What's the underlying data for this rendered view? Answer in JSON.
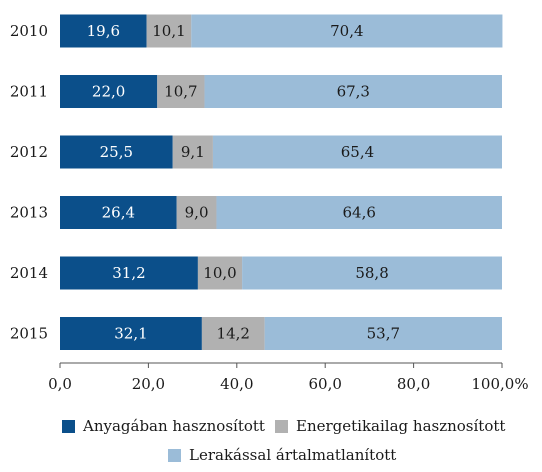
{
  "chart_data": {
    "type": "bar",
    "orientation": "horizontal",
    "stacked": true,
    "categories": [
      "2010",
      "2011",
      "2012",
      "2013",
      "2014",
      "2015"
    ],
    "series": [
      {
        "name": "Anyagában hasznosított",
        "values": [
          19.6,
          22.0,
          25.5,
          26.4,
          31.2,
          32.1
        ],
        "labels": [
          "19,6",
          "22,0",
          "25,5",
          "26,4",
          "31,2",
          "32,1"
        ],
        "color": "#0b4f8a",
        "label_color": "#ffffff"
      },
      {
        "name": "Energetikailag hasznosított",
        "values": [
          10.1,
          10.7,
          9.1,
          9.0,
          10.0,
          14.2
        ],
        "labels": [
          "10,1",
          "10,7",
          "9,1",
          "9,0",
          "10,0",
          "14,2"
        ],
        "color": "#b1b1b1",
        "label_color": "#1a1a1a"
      },
      {
        "name": "Lerakással ártalmatlanított",
        "values": [
          70.4,
          67.3,
          65.4,
          64.6,
          58.8,
          53.7
        ],
        "labels": [
          "70,4",
          "67,3",
          "65,4",
          "64,6",
          "58,8",
          "53,7"
        ],
        "color": "#9bbcd8",
        "label_color": "#1a1a1a"
      }
    ],
    "xlim": [
      0,
      100
    ],
    "x_ticks": [
      0,
      20,
      40,
      60,
      80,
      100
    ],
    "x_tick_labels": [
      "0,0",
      "20,0",
      "40,0",
      "60,0",
      "80,0",
      "100,0%"
    ],
    "grid": false,
    "legend_position": "bottom"
  }
}
